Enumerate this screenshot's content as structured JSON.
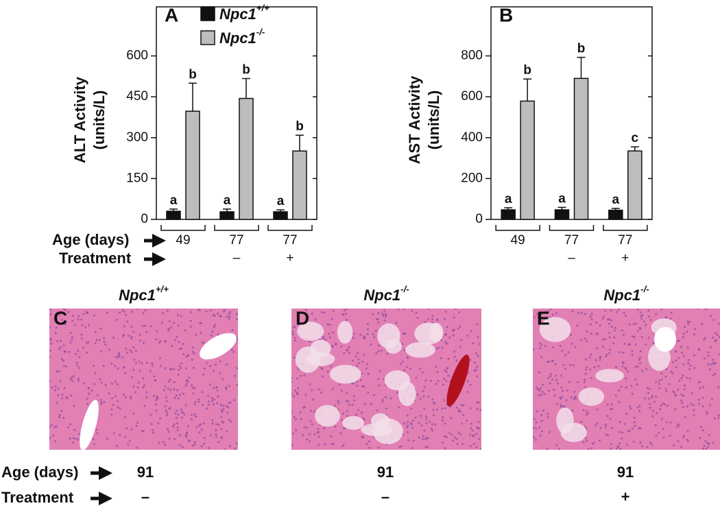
{
  "chart_data": [
    {
      "type": "bar",
      "panel": "A",
      "ylabel": [
        "ALT Activity",
        "(units/L)"
      ],
      "category_label": "Age (days)",
      "categories": [
        "49",
        "77",
        "77"
      ],
      "treatment_label": "Treatment",
      "treatment": [
        null,
        "–",
        "+"
      ],
      "ylim": [
        0,
        780
      ],
      "yticks": [
        0,
        150,
        300,
        450,
        600
      ],
      "series": [
        {
          "name": "Npc1",
          "superscript": "+/+",
          "color": "#111111",
          "values": [
            30,
            28,
            28
          ],
          "errors": [
            8,
            10,
            7
          ],
          "letters": [
            "a",
            "a",
            "a"
          ]
        },
        {
          "name": "Npc1",
          "superscript": "-/-",
          "color": "#bdbdbd",
          "values": [
            397,
            444,
            251
          ],
          "errors": [
            103,
            73,
            58
          ],
          "letters": [
            "b",
            "b",
            "b"
          ]
        }
      ]
    },
    {
      "type": "bar",
      "panel": "B",
      "ylabel": [
        "AST Activity",
        "(units/L)"
      ],
      "categories": [
        "49",
        "77",
        "77"
      ],
      "treatment": [
        null,
        "–",
        "+"
      ],
      "ylim": [
        0,
        1040
      ],
      "yticks": [
        0,
        200,
        400,
        600,
        800
      ],
      "series": [
        {
          "color": "#111111",
          "values": [
            47,
            47,
            45
          ],
          "errors": [
            10,
            12,
            9
          ],
          "letters": [
            "a",
            "a",
            "a"
          ]
        },
        {
          "color": "#bdbdbd",
          "values": [
            579,
            690,
            335
          ],
          "errors": [
            108,
            103,
            20
          ],
          "letters": [
            "b",
            "b",
            "c"
          ]
        }
      ]
    }
  ],
  "micrographs": {
    "age_label": "Age (days)",
    "treatment_label": "Treatment",
    "panels": [
      {
        "letter": "C",
        "genotype": "Npc1",
        "superscript": "+/+",
        "age": "91",
        "treatment": "–"
      },
      {
        "letter": "D",
        "genotype": "Npc1",
        "superscript": "-/-",
        "age": "91",
        "treatment": "–"
      },
      {
        "letter": "E",
        "genotype": "Npc1",
        "superscript": "-/-",
        "age": "91",
        "treatment": "+"
      }
    ]
  }
}
